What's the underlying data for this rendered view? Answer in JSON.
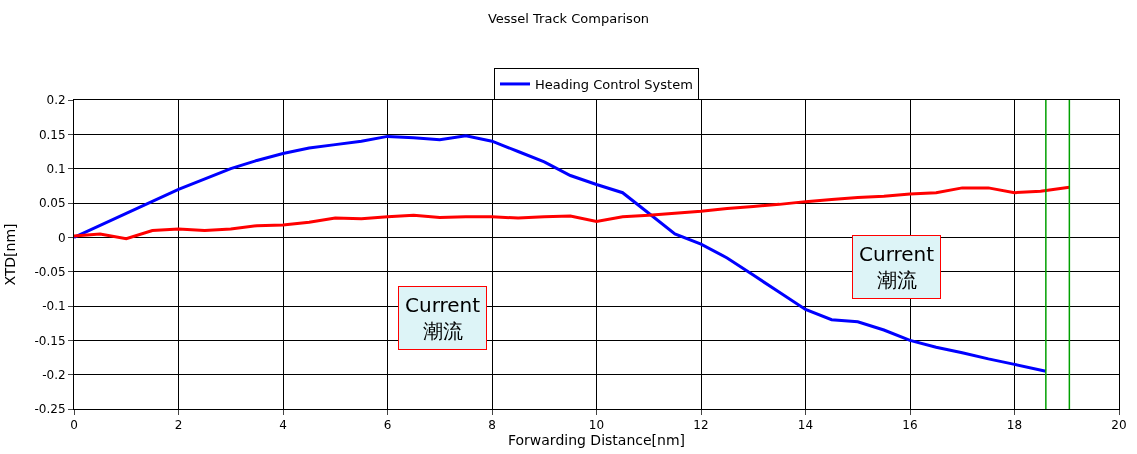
{
  "chart_data": {
    "type": "line",
    "title": "Vessel Track Comparison",
    "xlabel": "Forwarding Distance[nm]",
    "ylabel": "XTD[nm]",
    "series": [
      {
        "name": "Heading Control System",
        "color": "#0000ff",
        "x": [
          0,
          1,
          2,
          3,
          3.5,
          4,
          4.5,
          5,
          5.5,
          6,
          6.5,
          7,
          7.5,
          8,
          8.5,
          9,
          9.5,
          10,
          10.5,
          11,
          11.5,
          12,
          12.5,
          13,
          13.5,
          14,
          14.5,
          15,
          15.5,
          16,
          16.5,
          17,
          17.5,
          18,
          18.6
        ],
        "values": [
          0,
          0.035,
          0.07,
          0.1,
          0.112,
          0.122,
          0.13,
          0.135,
          0.14,
          0.147,
          0.145,
          0.142,
          0.148,
          0.14,
          0.125,
          0.11,
          0.09,
          0.077,
          0.065,
          0.035,
          0.005,
          -0.01,
          -0.03,
          -0.055,
          -0.08,
          -0.105,
          -0.12,
          -0.123,
          -0.135,
          -0.15,
          -0.16,
          -0.168,
          -0.177,
          -0.185,
          -0.195
        ]
      },
      {
        "color": "#ff0000",
        "x": [
          0,
          0.5,
          1,
          1.5,
          2,
          2.5,
          3,
          3.5,
          4,
          4.5,
          5,
          5.5,
          6,
          6.5,
          7,
          7.5,
          8,
          8.5,
          9,
          9.5,
          10,
          10.5,
          11,
          11.5,
          12,
          12.5,
          13,
          13.5,
          14,
          14.5,
          15,
          15.5,
          16,
          16.5,
          17,
          17.5,
          18,
          18.5,
          19.05
        ],
        "values": [
          0.002,
          0.005,
          -0.002,
          0.01,
          0.012,
          0.01,
          0.012,
          0.017,
          0.018,
          0.022,
          0.028,
          0.027,
          0.03,
          0.032,
          0.029,
          0.03,
          0.03,
          0.028,
          0.03,
          0.031,
          0.023,
          0.03,
          0.032,
          0.035,
          0.038,
          0.042,
          0.045,
          0.048,
          0.052,
          0.055,
          0.058,
          0.06,
          0.063,
          0.065,
          0.072,
          0.072,
          0.065,
          0.067,
          0.073
        ]
      }
    ],
    "xlim": [
      0,
      20
    ],
    "xticks": [
      0,
      2,
      4,
      6,
      8,
      10,
      12,
      14,
      16,
      18,
      20
    ],
    "ylim": [
      -0.25,
      0.2
    ],
    "yticks": [
      {
        "value": -0.25,
        "label": "-0.25"
      },
      {
        "value": -0.2,
        "label": "-0.2"
      },
      {
        "value": -0.15,
        "label": "-0.15"
      },
      {
        "value": -0.1,
        "label": "-0.1"
      },
      {
        "value": -0.05,
        "label": "-0.05"
      },
      0,
      0.05,
      0.1,
      0.15,
      0.2
    ],
    "ref_lines": [
      {
        "axis": "x",
        "value": 18.6,
        "color": "#00a000"
      },
      {
        "axis": "x",
        "value": 19.05,
        "color": "#00a000"
      }
    ],
    "annotations": [
      "Current\n潮流",
      "Current\n潮流"
    ],
    "grid": true,
    "legend": "top",
    "marker": "none",
    "line_style": "solid"
  }
}
